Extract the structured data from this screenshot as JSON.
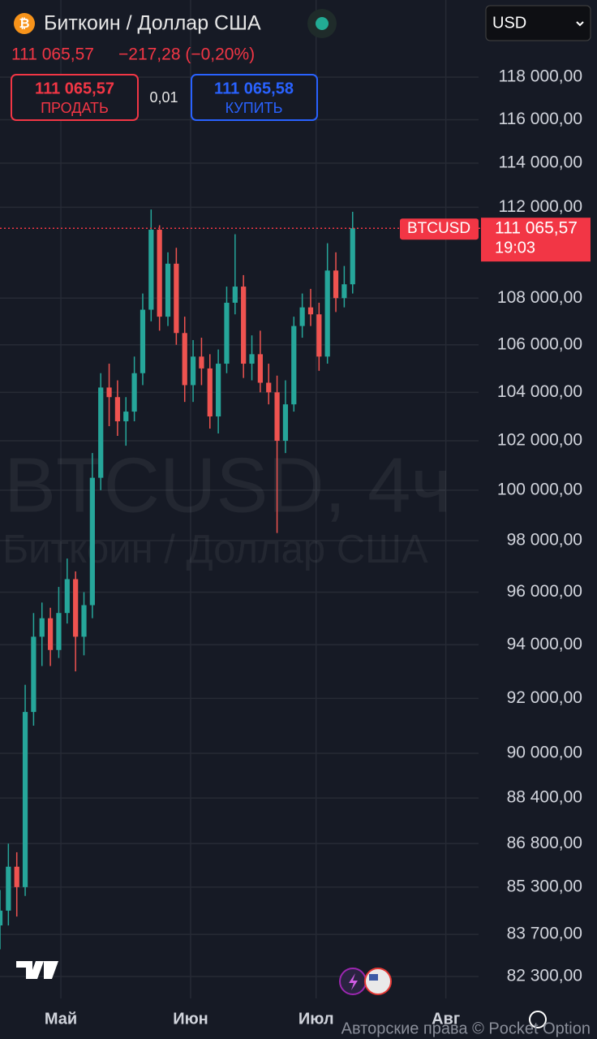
{
  "header": {
    "title": "Биткоин / Доллар США",
    "price": "111 065,57",
    "change": "−217,28 (−0,20%)",
    "sell_price": "111 065,57",
    "sell_label": "ПРОДАТЬ",
    "spread": "0,01",
    "buy_price": "111 065,58",
    "buy_label": "КУПИТЬ",
    "currency": "USD"
  },
  "watermark": {
    "symbol": "BTCUSD, 4ч",
    "name": "Биткоин / Доллар США"
  },
  "footer": {
    "copyright": "Авторские права © Pocket Option"
  },
  "chart_data": {
    "type": "candlestick",
    "symbol": "BTCUSD",
    "time": "19:03",
    "up_color": "#26a69a",
    "down_color": "#ef5350",
    "log_scale": true,
    "grid": true,
    "last_price": {
      "value": 111065.57,
      "label": "111 065,57"
    },
    "xlim": [
      0,
      114
    ],
    "xticks": [
      {
        "value": 14.5,
        "label": "Май"
      },
      {
        "value": 45.4,
        "label": "Июн"
      },
      {
        "value": 75.3,
        "label": "Июл"
      },
      {
        "value": 106.2,
        "label": "Авг"
      }
    ],
    "ylim": [
      81580,
      121700
    ],
    "yticks": [
      {
        "value": 82300,
        "label": "82 300,00"
      },
      {
        "value": 83700,
        "label": "83 700,00"
      },
      {
        "value": 85300,
        "label": "85 300,00"
      },
      {
        "value": 86800,
        "label": "86 800,00"
      },
      {
        "value": 88400,
        "label": "88 400,00"
      },
      {
        "value": 90000,
        "label": "90 000,00"
      },
      {
        "value": 92000,
        "label": "92 000,00"
      },
      {
        "value": 94000,
        "label": "94 000,00"
      },
      {
        "value": 96000,
        "label": "96 000,00"
      },
      {
        "value": 98000,
        "label": "98 000,00"
      },
      {
        "value": 100000,
        "label": "100 000,00"
      },
      {
        "value": 102000,
        "label": "102 000,00"
      },
      {
        "value": 104000,
        "label": "104 000,00"
      },
      {
        "value": 106000,
        "label": "106 000,00"
      },
      {
        "value": 108000,
        "label": "108 000,00"
      },
      {
        "value": 112000,
        "label": "112 000,00"
      },
      {
        "value": 114000,
        "label": "114 000,00"
      },
      {
        "value": 116000,
        "label": "116 000,00"
      },
      {
        "value": 118000,
        "label": "118 000,00"
      }
    ],
    "x": [
      0,
      2,
      4,
      6,
      8,
      10,
      12,
      14,
      16,
      18,
      20,
      22,
      24,
      26,
      28,
      30,
      32,
      34,
      36,
      38,
      40,
      42,
      44,
      46,
      48,
      50,
      52,
      54,
      56,
      58,
      60,
      62,
      64,
      66,
      68,
      70,
      72,
      74,
      76,
      78,
      80,
      82,
      84
    ],
    "open": [
      84000,
      84500,
      86000,
      85300,
      91500,
      94300,
      95000,
      93800,
      95200,
      96500,
      94300,
      95500,
      100500,
      104200,
      103800,
      102800,
      103200,
      104800,
      107500,
      111000,
      107200,
      109500,
      106500,
      104300,
      105500,
      105000,
      103000,
      105200,
      107800,
      108500,
      105200,
      105600,
      104400,
      104000,
      102000,
      103500,
      106800,
      107600,
      107300,
      105500,
      109200,
      108000,
      108600
    ],
    "high": [
      85200,
      86800,
      86500,
      92500,
      95200,
      95600,
      95400,
      96200,
      97300,
      96800,
      96000,
      101500,
      104800,
      105200,
      104500,
      103800,
      105500,
      108200,
      111900,
      111200,
      110000,
      110200,
      107200,
      106200,
      106300,
      105600,
      105800,
      108500,
      110800,
      109000,
      106400,
      106600,
      105200,
      104700,
      104500,
      107200,
      108200,
      108400,
      107800,
      110400,
      110000,
      109400,
      111800
    ],
    "low": [
      83200,
      84000,
      84300,
      85000,
      91000,
      93200,
      93200,
      93500,
      94800,
      93000,
      93600,
      95000,
      100000,
      102600,
      102200,
      101800,
      102800,
      104300,
      107000,
      106600,
      106800,
      106000,
      103600,
      103600,
      104300,
      102500,
      102300,
      104800,
      107300,
      104600,
      104500,
      104000,
      103500,
      98300,
      101500,
      103200,
      106300,
      106800,
      104900,
      105200,
      107400,
      107600,
      108200
    ],
    "close": [
      84500,
      86000,
      85300,
      91500,
      94300,
      95000,
      93800,
      95200,
      96500,
      94300,
      95500,
      100500,
      104200,
      103800,
      102800,
      103200,
      104800,
      107500,
      111000,
      107200,
      109500,
      106500,
      104300,
      105500,
      105000,
      103000,
      105200,
      107800,
      108500,
      105200,
      105600,
      104400,
      104000,
      102000,
      103500,
      106800,
      107600,
      107300,
      105500,
      109200,
      108000,
      108600,
      111065.57
    ]
  }
}
